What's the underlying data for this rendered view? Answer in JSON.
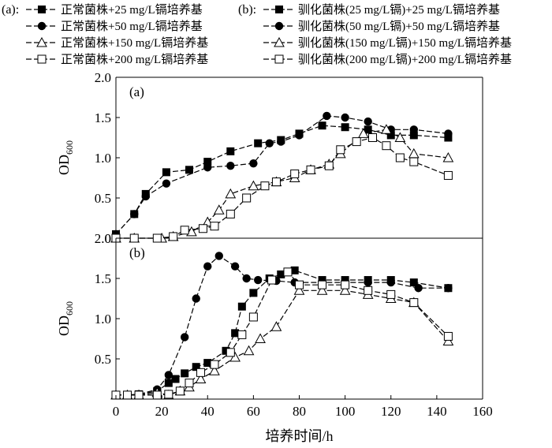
{
  "legend_a": {
    "label": "(a):",
    "entries": [
      {
        "marker": "square-filled",
        "text": "正常菌株+25 mg/L镉培养基"
      },
      {
        "marker": "circle-filled",
        "text": "正常菌株+50 mg/L镉培养基"
      },
      {
        "marker": "triangle-open",
        "text": "正常菌株+150 mg/L镉培养基"
      },
      {
        "marker": "square-open",
        "text": "正常菌株+200 mg/L镉培养基"
      }
    ]
  },
  "legend_b": {
    "label": "(b):",
    "entries": [
      {
        "marker": "square-filled",
        "text": "驯化菌株(25 mg/L镉)+25 mg/L镉培养基"
      },
      {
        "marker": "circle-filled",
        "text": "驯化菌株(50 mg/L镉)+50 mg/L镉培养基"
      },
      {
        "marker": "triangle-open",
        "text": "驯化菌株(150 mg/L镉)+150 mg/L镉培养基"
      },
      {
        "marker": "square-open",
        "text": "驯化菌株(200 mg/L镉)+200 mg/L镉培养基"
      }
    ]
  },
  "chart_data": [
    {
      "type": "line",
      "panel_label": "(a)",
      "ylabel": "OD",
      "ylabel_sub": "600",
      "xlim": [
        0,
        160
      ],
      "ylim": [
        0,
        2.0
      ],
      "yticks": [
        "0",
        "0.5",
        "1.0",
        "1.5",
        "2.0"
      ],
      "grid": false,
      "series": [
        {
          "marker": "square-filled",
          "x": [
            0,
            8,
            13,
            22,
            32,
            40,
            50,
            62,
            72,
            80,
            90,
            100,
            110,
            120,
            130,
            145
          ],
          "y": [
            0.05,
            0.3,
            0.55,
            0.82,
            0.85,
            0.95,
            1.08,
            1.18,
            1.22,
            1.3,
            1.4,
            1.38,
            1.35,
            1.28,
            1.28,
            1.25
          ]
        },
        {
          "marker": "circle-filled",
          "x": [
            0,
            8,
            13,
            22,
            40,
            50,
            60,
            67,
            72,
            80,
            92,
            100,
            110,
            120,
            130,
            145
          ],
          "y": [
            0.05,
            0.3,
            0.52,
            0.68,
            0.88,
            0.9,
            0.93,
            1.18,
            1.2,
            1.28,
            1.52,
            1.5,
            1.45,
            1.35,
            1.35,
            1.3
          ]
        },
        {
          "marker": "triangle-open",
          "x": [
            0,
            8,
            20,
            25,
            33,
            40,
            45,
            50,
            60,
            70,
            78,
            85,
            93,
            98,
            108,
            118,
            124,
            130,
            145
          ],
          "y": [
            0,
            0,
            0,
            0.02,
            0.08,
            0.2,
            0.35,
            0.55,
            0.65,
            0.7,
            0.75,
            0.85,
            0.92,
            1.05,
            1.3,
            1.35,
            1.25,
            1.05,
            1.0
          ]
        },
        {
          "marker": "square-open",
          "x": [
            0,
            8,
            18,
            25,
            30,
            38,
            43,
            50,
            57,
            65,
            70,
            78,
            85,
            93,
            98,
            105,
            112,
            118,
            124,
            130,
            145
          ],
          "y": [
            0,
            0,
            0,
            0.02,
            0.1,
            0.12,
            0.15,
            0.3,
            0.5,
            0.65,
            0.7,
            0.8,
            0.85,
            0.9,
            1.1,
            1.2,
            1.25,
            1.15,
            1.0,
            0.95,
            0.78
          ]
        }
      ]
    },
    {
      "type": "line",
      "panel_label": "(b)",
      "ylabel": "OD",
      "ylabel_sub": "600",
      "xlabel": "培养时间/h",
      "xlim": [
        0,
        160
      ],
      "ylim": [
        0,
        2.0
      ],
      "xticks": [
        "0",
        "20",
        "40",
        "60",
        "80",
        "100",
        "120",
        "140",
        "160"
      ],
      "yticks": [
        "0.5",
        "1.0",
        "1.5",
        "2.0"
      ],
      "grid": false,
      "series": [
        {
          "marker": "square-filled",
          "x": [
            0,
            5,
            10,
            18,
            23,
            26,
            30,
            35,
            40,
            48,
            52,
            55,
            60,
            67,
            72,
            78,
            90,
            100,
            110,
            120,
            130,
            145
          ],
          "y": [
            0.05,
            0.05,
            0.06,
            0.1,
            0.2,
            0.25,
            0.32,
            0.4,
            0.45,
            0.6,
            0.82,
            1.15,
            1.32,
            1.5,
            1.55,
            1.6,
            1.48,
            1.48,
            1.48,
            1.48,
            1.45,
            1.38
          ]
        },
        {
          "marker": "circle-filled",
          "x": [
            0,
            5,
            10,
            18,
            23,
            30,
            35,
            40,
            45,
            52,
            57,
            62,
            70,
            78,
            90,
            100,
            110,
            120,
            132,
            145
          ],
          "y": [
            0.05,
            0.05,
            0.06,
            0.12,
            0.3,
            0.77,
            1.25,
            1.65,
            1.78,
            1.65,
            1.5,
            1.48,
            1.47,
            1.45,
            1.45,
            1.45,
            1.45,
            1.45,
            1.38,
            1.38
          ]
        },
        {
          "marker": "triangle-open",
          "x": [
            0,
            5,
            10,
            18,
            23,
            28,
            32,
            37,
            43,
            52,
            58,
            63,
            70,
            80,
            90,
            100,
            110,
            120,
            130,
            145
          ],
          "y": [
            0.05,
            0.05,
            0.05,
            0.08,
            0.05,
            0.1,
            0.15,
            0.25,
            0.35,
            0.52,
            0.6,
            0.75,
            0.9,
            1.35,
            1.35,
            1.35,
            1.3,
            1.25,
            1.2,
            0.72
          ]
        },
        {
          "marker": "square-open",
          "x": [
            0,
            5,
            10,
            18,
            23,
            28,
            32,
            37,
            43,
            50,
            55,
            60,
            68,
            75,
            80,
            90,
            100,
            110,
            120,
            130,
            145
          ],
          "y": [
            0.05,
            0.05,
            0.05,
            0.05,
            0.06,
            0.1,
            0.2,
            0.33,
            0.43,
            0.58,
            0.8,
            1.02,
            1.48,
            1.58,
            1.42,
            1.42,
            1.42,
            1.35,
            1.3,
            1.2,
            0.78
          ]
        }
      ]
    }
  ]
}
